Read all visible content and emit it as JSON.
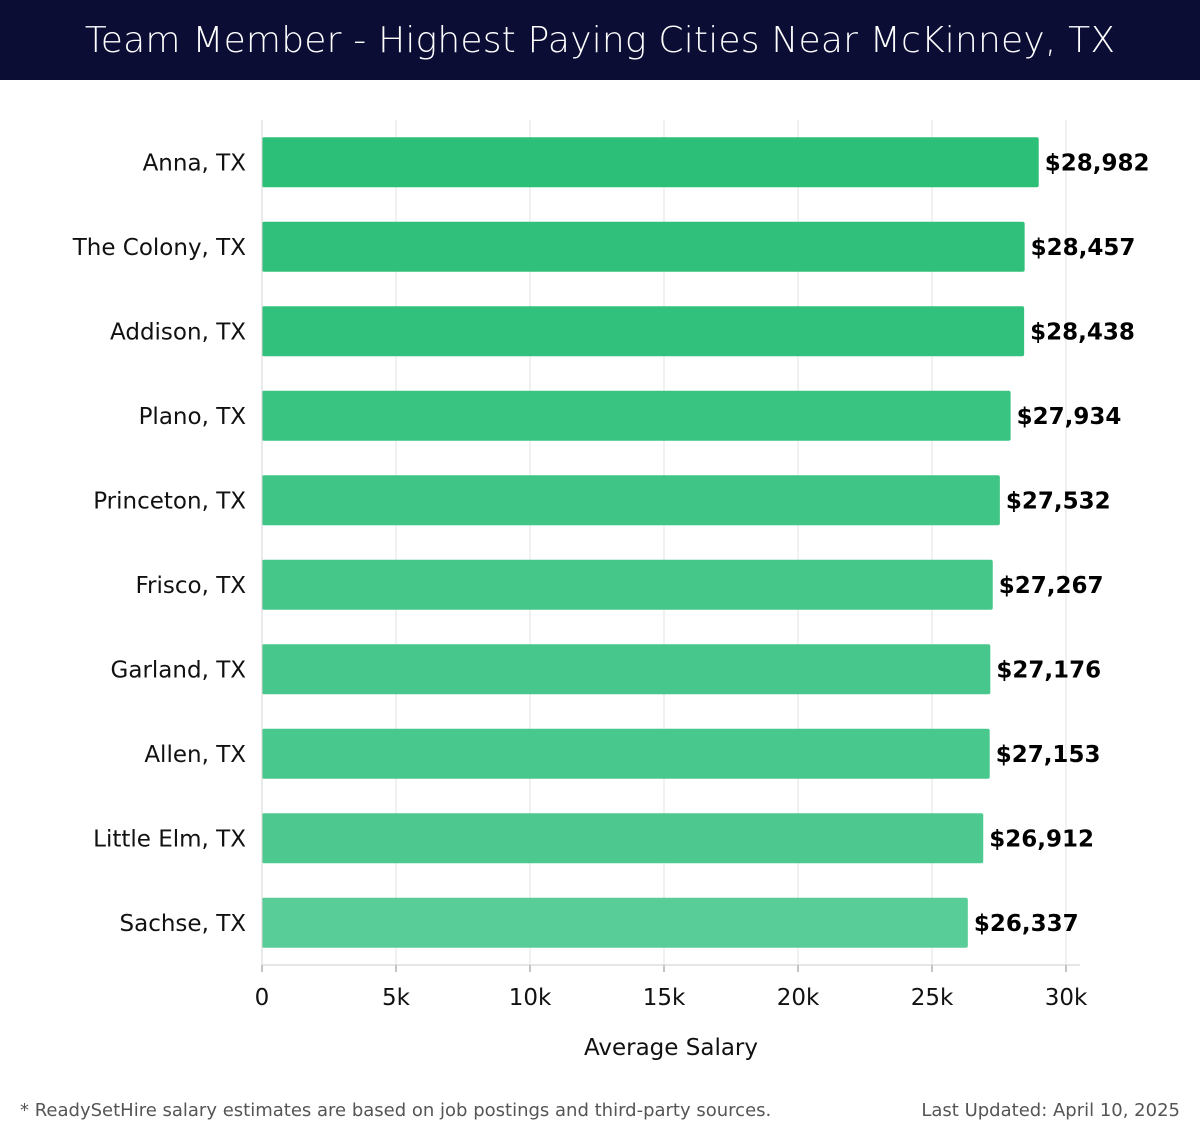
{
  "header": {
    "title": "Team Member - Highest Paying Cities Near McKinney, TX"
  },
  "chart_data": {
    "type": "bar",
    "orientation": "horizontal",
    "title": "Team Member - Highest Paying Cities Near McKinney, TX",
    "categories": [
      "Anna, TX",
      "The Colony, TX",
      "Addison, TX",
      "Plano, TX",
      "Princeton, TX",
      "Frisco, TX",
      "Garland, TX",
      "Allen, TX",
      "Little Elm, TX",
      "Sachse, TX"
    ],
    "values": [
      28982,
      28457,
      28438,
      27934,
      27532,
      27267,
      27176,
      27153,
      26912,
      26337
    ],
    "value_labels": [
      "$28,982",
      "$28,457",
      "$28,438",
      "$27,934",
      "$27,532",
      "$27,267",
      "$27,176",
      "$27,153",
      "$26,912",
      "$26,337"
    ],
    "xlabel": "Average Salary",
    "ylabel": "",
    "xlim": [
      0,
      30000
    ],
    "ticks": [
      0,
      5000,
      10000,
      15000,
      20000,
      25000,
      30000
    ],
    "tick_labels": [
      "0",
      "5k",
      "10k",
      "15k",
      "20k",
      "25k",
      "30k"
    ],
    "grid": true,
    "bar_colors": [
      "#2bbf78",
      "#30c07b",
      "#31c17c",
      "#3ac482",
      "#3fc585",
      "#45c78a",
      "#47c78b",
      "#48c88c",
      "#4dc98f",
      "#58cd97"
    ]
  },
  "footer": {
    "note": "* ReadySetHire salary estimates are based on job postings and third-party sources.",
    "updated": "Last Updated: April 10, 2025"
  }
}
